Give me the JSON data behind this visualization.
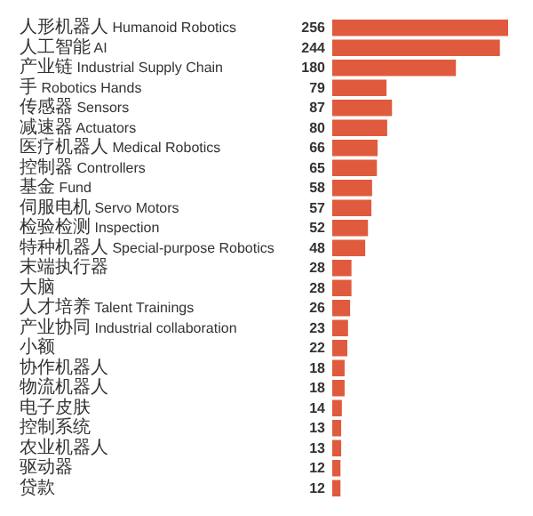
{
  "chart_data": {
    "type": "bar",
    "orientation": "horizontal",
    "data_labels": true,
    "color": "#e05a3d",
    "categories": [
      "人形机器人 Humanoid Robotics",
      "人工智能 AI",
      "产业链 Industrial Supply Chain",
      "手 Robotics Hands",
      "传感器 Sensors",
      "减速器 Actuators",
      "医疗机器人 Medical Robotics",
      "控制器 Controllers",
      "基金 Fund",
      "伺服电机 Servo Motors",
      "检验检测 Inspection",
      "特种机器人 Special-purpose Robotics",
      "末端执行器",
      "大脑",
      "人才培养 Talent Trainings",
      "产业协同 Industrial collaboration",
      "小额",
      "协作机器人",
      "物流机器人",
      "电子皮肤",
      "控制系统",
      "农业机器人",
      "驱动器",
      "贷款"
    ],
    "values": [
      256,
      244,
      180,
      79,
      87,
      80,
      66,
      65,
      58,
      57,
      52,
      48,
      28,
      28,
      26,
      23,
      22,
      18,
      18,
      14,
      13,
      13,
      12,
      12
    ]
  }
}
